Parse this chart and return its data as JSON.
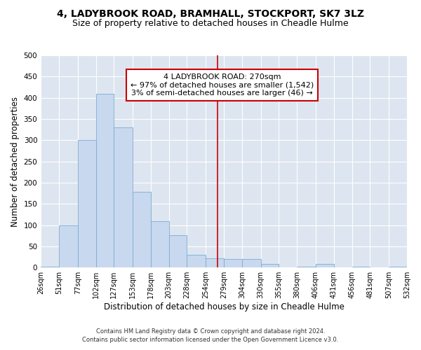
{
  "title": "4, LADYBROOK ROAD, BRAMHALL, STOCKPORT, SK7 3LZ",
  "subtitle": "Size of property relative to detached houses in Cheadle Hulme",
  "xlabel": "Distribution of detached houses by size in Cheadle Hulme",
  "ylabel": "Number of detached properties",
  "footer_line1": "Contains HM Land Registry data © Crown copyright and database right 2024.",
  "footer_line2": "Contains public sector information licensed under the Open Government Licence v3.0.",
  "bar_edges": [
    26,
    51,
    77,
    102,
    127,
    153,
    178,
    203,
    228,
    254,
    279,
    304,
    330,
    355,
    380,
    406,
    431,
    456,
    481,
    507,
    532
  ],
  "bar_heights": [
    2,
    100,
    300,
    410,
    330,
    178,
    110,
    77,
    30,
    22,
    20,
    20,
    8,
    0,
    2,
    8,
    0,
    2,
    0,
    2,
    0
  ],
  "bar_color": "#c8d8ee",
  "bar_edgecolor": "#7aacd4",
  "vline_x": 270,
  "vline_color": "#cc0000",
  "annotation_title": "4 LADYBROOK ROAD: 270sqm",
  "annotation_line1": "← 97% of detached houses are smaller (1,542)",
  "annotation_line2": "3% of semi-detached houses are larger (46) →",
  "annotation_box_color": "#ffffff",
  "annotation_box_edgecolor": "#cc0000",
  "ylim": [
    0,
    500
  ],
  "xlim_min": 26,
  "xlim_max": 532,
  "tick_labels": [
    "26sqm",
    "51sqm",
    "77sqm",
    "102sqm",
    "127sqm",
    "153sqm",
    "178sqm",
    "203sqm",
    "228sqm",
    "254sqm",
    "279sqm",
    "304sqm",
    "330sqm",
    "355sqm",
    "380sqm",
    "406sqm",
    "431sqm",
    "456sqm",
    "481sqm",
    "507sqm",
    "532sqm"
  ],
  "background_color": "#dde5f0",
  "grid_color": "#ffffff",
  "title_fontsize": 10,
  "subtitle_fontsize": 9,
  "ylabel_fontsize": 8.5,
  "xlabel_fontsize": 8.5,
  "tick_fontsize": 7,
  "annotation_fontsize": 8,
  "footer_fontsize": 6
}
